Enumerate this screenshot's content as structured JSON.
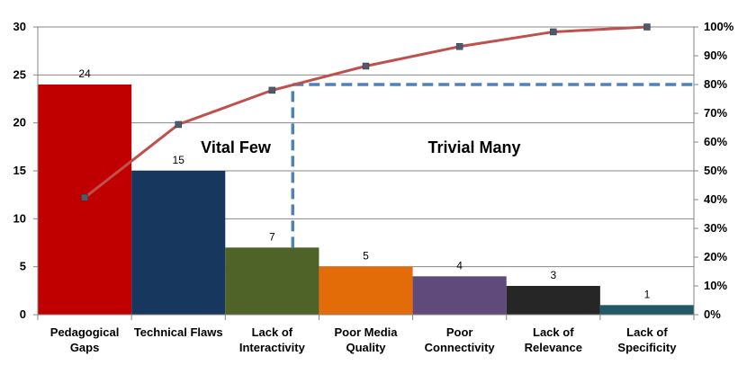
{
  "chart_data": {
    "type": "bar",
    "categories": [
      [
        "Pedagogical",
        "Gaps"
      ],
      [
        "Technical Flaws"
      ],
      [
        "Lack of",
        "Interactivity"
      ],
      [
        "Poor Media",
        "Quality"
      ],
      [
        "Poor",
        "Connectivity"
      ],
      [
        "Lack of",
        "Relevance"
      ],
      [
        "Lack of",
        "Specificity"
      ]
    ],
    "values": [
      24,
      15,
      7,
      5,
      4,
      3,
      1
    ],
    "value_labels": [
      "24",
      "15",
      "7",
      "5",
      "4",
      "3",
      "1"
    ],
    "bar_colors": [
      "#C00000",
      "#17375E",
      "#4F6228",
      "#E36C09",
      "#604A7B",
      "#262626",
      "#215967"
    ],
    "cumulative_percent": [
      40.7,
      66.1,
      78.0,
      86.4,
      93.2,
      98.3,
      100
    ],
    "line_color": "#C0504D",
    "marker_color": "#4F5B6B",
    "threshold_percent": 80,
    "threshold_color": "#4F81BD",
    "ylim": [
      0,
      30
    ],
    "y_ticks": [
      "0",
      "5",
      "10",
      "15",
      "20",
      "25",
      "30"
    ],
    "y2lim": [
      0,
      100
    ],
    "y2_ticks": [
      "0%",
      "10%",
      "20%",
      "30%",
      "40%",
      "50%",
      "60%",
      "70%",
      "80%",
      "90%",
      "100%"
    ],
    "grid": true,
    "annotations": {
      "left": "Vital Few",
      "right": "Trivial Many"
    }
  }
}
